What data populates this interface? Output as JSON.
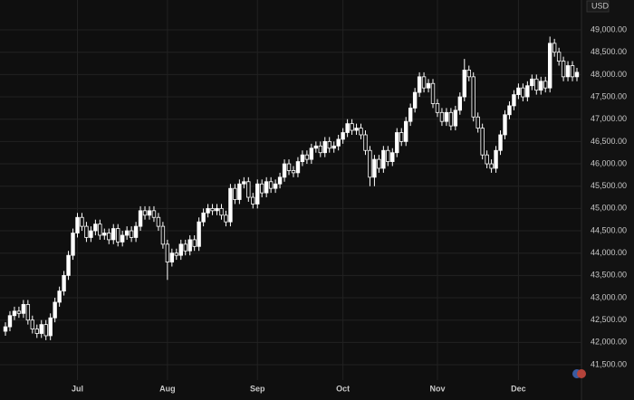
{
  "chart_data": {
    "type": "candlestick",
    "currency": "USD",
    "open": [
      42250,
      42350,
      42600,
      42700,
      42650,
      42850,
      42500,
      42300,
      42200,
      42400,
      42150,
      42550,
      42900,
      43150,
      43500,
      43950,
      44450,
      44800,
      44600,
      44350,
      44500,
      44650,
      44400,
      44450,
      44300,
      44550,
      44250,
      44400,
      44500,
      44350,
      44600,
      44950,
      44850,
      44950,
      44800,
      44600,
      44200,
      43800,
      44000,
      43950,
      44200,
      44050,
      44300,
      44150,
      44700,
      44900,
      45000,
      44950,
      45000,
      44850,
      44700,
      45450,
      45200,
      45550,
      45600,
      45250,
      45100,
      45550,
      45350,
      45600,
      45450,
      45550,
      45700,
      46000,
      45850,
      45800,
      46050,
      46200,
      46100,
      46350,
      46400,
      46250,
      46500,
      46350,
      46400,
      46550,
      46700,
      46900,
      46750,
      46800,
      46650,
      46300,
      45700,
      46100,
      45900,
      46300,
      46050,
      46250,
      46700,
      46500,
      46950,
      47250,
      47600,
      47950,
      47700,
      47800,
      47350,
      47150,
      46950,
      47150,
      46850,
      47200,
      47500,
      48100,
      47950,
      47050,
      46800,
      46200,
      46000,
      45900,
      46300,
      46650,
      47100,
      47300,
      47550,
      47700,
      47500,
      47750,
      47900,
      47650,
      47850,
      47700,
      48700,
      48500,
      48300,
      47950,
      48200,
      47950
    ],
    "high": [
      42450,
      42700,
      42800,
      42800,
      42950,
      42950,
      42600,
      42400,
      42500,
      42500,
      42650,
      43000,
      43250,
      43600,
      44050,
      44550,
      44900,
      44900,
      44700,
      44600,
      44750,
      44750,
      44550,
      44550,
      44650,
      44650,
      44500,
      44600,
      44600,
      44700,
      45050,
      45050,
      45050,
      45050,
      44900,
      44700,
      44300,
      44100,
      44100,
      44300,
      44300,
      44400,
      44400,
      44800,
      45000,
      45100,
      45100,
      45100,
      45100,
      44950,
      45550,
      45550,
      45650,
      45700,
      45700,
      45350,
      45650,
      45650,
      45700,
      45700,
      45650,
      45800,
      46100,
      46100,
      45950,
      46150,
      46300,
      46300,
      46450,
      46500,
      46500,
      46600,
      46600,
      46500,
      46650,
      46800,
      47000,
      47000,
      46900,
      46900,
      46750,
      46400,
      46200,
      46200,
      46400,
      46400,
      46350,
      46800,
      46800,
      47050,
      47350,
      47700,
      48050,
      48050,
      47900,
      47900,
      47450,
      47250,
      47250,
      47250,
      47300,
      47600,
      48350,
      48200,
      48050,
      47150,
      46900,
      46300,
      46100,
      46400,
      46750,
      47200,
      47400,
      47650,
      47800,
      47800,
      47850,
      48000,
      48000,
      47950,
      47950,
      48850,
      48800,
      48600,
      48400,
      48300,
      48300,
      48150
    ],
    "low": [
      42150,
      42250,
      42500,
      42550,
      42550,
      42400,
      42200,
      42100,
      42100,
      42050,
      42050,
      42450,
      42800,
      43050,
      43400,
      43850,
      44350,
      44500,
      44250,
      44250,
      44400,
      44300,
      44300,
      44200,
      44200,
      44150,
      44150,
      44300,
      44250,
      44250,
      44500,
      44750,
      44750,
      44700,
      44500,
      44100,
      43400,
      43700,
      43850,
      43850,
      43950,
      43950,
      44050,
      44050,
      44600,
      44800,
      44850,
      44850,
      44750,
      44600,
      44600,
      45100,
      45100,
      45450,
      45150,
      45000,
      45000,
      45250,
      45250,
      45350,
      45350,
      45450,
      45600,
      45750,
      45700,
      45700,
      45950,
      46000,
      46000,
      46250,
      46150,
      46150,
      46250,
      46250,
      46300,
      46450,
      46600,
      46650,
      46650,
      46550,
      46200,
      45500,
      45500,
      45800,
      45800,
      45950,
      45950,
      46150,
      46400,
      46400,
      46850,
      47150,
      47500,
      47600,
      47600,
      47250,
      47050,
      46850,
      46850,
      46750,
      46750,
      47100,
      47400,
      47850,
      46950,
      46700,
      46100,
      45900,
      45800,
      45800,
      46200,
      46550,
      47000,
      47200,
      47450,
      47400,
      47400,
      47650,
      47550,
      47550,
      47600,
      47600,
      48400,
      48200,
      47850,
      47850,
      47850,
      47850
    ],
    "close": [
      42350,
      42600,
      42700,
      42650,
      42850,
      42500,
      42300,
      42200,
      42400,
      42150,
      42550,
      42900,
      43150,
      43500,
      43950,
      44450,
      44800,
      44600,
      44350,
      44500,
      44650,
      44400,
      44450,
      44300,
      44550,
      44250,
      44400,
      44500,
      44350,
      44600,
      44950,
      44850,
      44950,
      44800,
      44600,
      44200,
      43800,
      44000,
      43950,
      44200,
      44050,
      44300,
      44150,
      44700,
      44900,
      45000,
      44950,
      45000,
      44850,
      44700,
      45450,
      45200,
      45550,
      45600,
      45250,
      45100,
      45550,
      45350,
      45600,
      45450,
      45550,
      45700,
      46000,
      45850,
      45800,
      46050,
      46200,
      46100,
      46350,
      46400,
      46250,
      46500,
      46350,
      46400,
      46550,
      46700,
      46900,
      46750,
      46800,
      46650,
      46300,
      45700,
      46100,
      45900,
      46300,
      46050,
      46250,
      46700,
      46500,
      46950,
      47250,
      47600,
      47950,
      47700,
      47800,
      47350,
      47150,
      46950,
      47150,
      46850,
      47200,
      47500,
      48100,
      47950,
      47050,
      46800,
      46200,
      46000,
      45900,
      46300,
      46650,
      47100,
      47300,
      47550,
      47700,
      47500,
      47750,
      47900,
      47650,
      47850,
      47700,
      48700,
      48500,
      48300,
      47950,
      48200,
      47950,
      48050
    ],
    "ylim": [
      40710,
      49670
    ],
    "yticks": [
      {
        "value": 41500,
        "label": "41,500.00"
      },
      {
        "value": 42000,
        "label": "42,000.00"
      },
      {
        "value": 42500,
        "label": "42,500.00"
      },
      {
        "value": 43000,
        "label": "43,000.00"
      },
      {
        "value": 43500,
        "label": "43,500.00"
      },
      {
        "value": 44000,
        "label": "44,000.00"
      },
      {
        "value": 44500,
        "label": "44,500.00"
      },
      {
        "value": 45000,
        "label": "45,000.00"
      },
      {
        "value": 45500,
        "label": "45,500.00"
      },
      {
        "value": 46000,
        "label": "46,000.00"
      },
      {
        "value": 46500,
        "label": "46,500.00"
      },
      {
        "value": 47000,
        "label": "47,000.00"
      },
      {
        "value": 47500,
        "label": "47,500.00"
      },
      {
        "value": 48000,
        "label": "48,000.00"
      },
      {
        "value": 48500,
        "label": "48,500.00"
      },
      {
        "value": 49000,
        "label": "49,000.00"
      }
    ],
    "xticks": [
      {
        "value": 16,
        "label": "Jul"
      },
      {
        "value": 36,
        "label": "Aug"
      },
      {
        "value": 56,
        "label": "Sep"
      },
      {
        "value": 75,
        "label": "Oct"
      },
      {
        "value": 96,
        "label": "Nov"
      },
      {
        "value": 114,
        "label": "Dec"
      }
    ],
    "grid": true,
    "up_color": "#ffffff",
    "down_color": "#0f0f0f"
  }
}
